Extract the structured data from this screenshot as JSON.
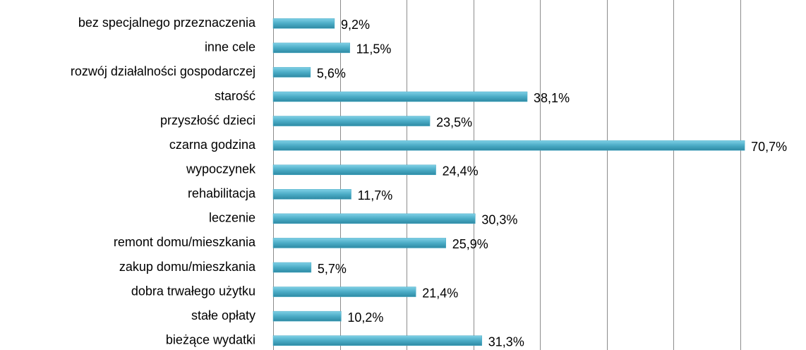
{
  "chart_data": {
    "type": "bar",
    "orientation": "horizontal",
    "categories": [
      "bez specjalnego przeznaczenia",
      "inne cele",
      "rozwój działalności gospodarczej",
      "starość",
      "przyszłość dzieci",
      "czarna godzina",
      "wypoczynek",
      "rehabilitacja",
      "leczenie",
      "remont domu/mieszkania",
      "zakup domu/mieszkania",
      "dobra trwałego użytku",
      "stałe opłaty",
      "bieżące wydatki"
    ],
    "values": [
      9.2,
      11.5,
      5.6,
      38.1,
      23.5,
      70.7,
      24.4,
      11.7,
      30.3,
      25.9,
      5.7,
      21.4,
      10.2,
      31.3
    ],
    "value_labels": [
      "9,2%",
      "11,5%",
      "5,6%",
      "38,1%",
      "23,5%",
      "70,7%",
      "24,4%",
      "11,7%",
      "30,3%",
      "25,9%",
      "5,7%",
      "21,4%",
      "10,2%",
      "31,3%"
    ],
    "color": "#4bacc6",
    "xlim": [
      0,
      80
    ],
    "xticks": [
      0,
      10,
      20,
      30,
      40,
      50,
      60,
      70
    ],
    "grid": true
  }
}
